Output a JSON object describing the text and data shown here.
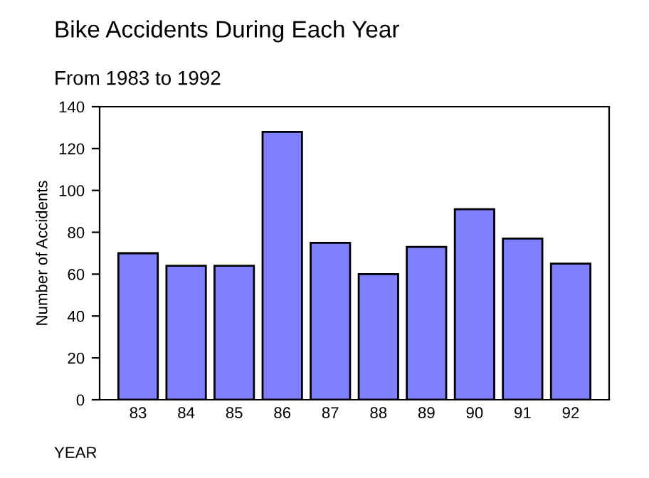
{
  "chart_data": {
    "type": "bar",
    "title": "Bike Accidents During Each Year",
    "subtitle": "From 1983 to 1992",
    "xlabel": "YEAR",
    "ylabel": "Number of Accidents",
    "categories": [
      "83",
      "84",
      "85",
      "86",
      "87",
      "88",
      "89",
      "90",
      "91",
      "92"
    ],
    "values": [
      70,
      64,
      64,
      128,
      75,
      60,
      73,
      91,
      77,
      65
    ],
    "color": "#8080ff",
    "ylim": [
      0,
      140
    ],
    "yticks": [
      0,
      20,
      40,
      60,
      80,
      100,
      120,
      140
    ],
    "grid": false
  }
}
